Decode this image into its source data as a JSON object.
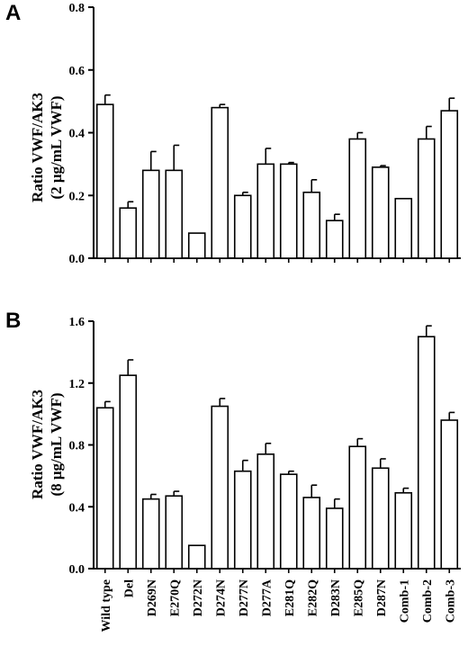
{
  "chart_data": [
    {
      "type": "bar",
      "panel_label": "A",
      "ylabel_line1": "Ratio VWF/AK3",
      "ylabel_line2": "(2 μg/mL VWF)",
      "ylim": [
        0,
        0.8
      ],
      "yticks": [
        "0.0",
        "0.2",
        "0.4",
        "0.6",
        "0.8"
      ],
      "categories": [
        "Wild type",
        "Del",
        "D269N",
        "E270Q",
        "D272N",
        "D274N",
        "D277N",
        "D277A",
        "E281Q",
        "E282Q",
        "D283N",
        "E285Q",
        "D287N",
        "Comb-1",
        "Comb-2",
        "Comb-3"
      ],
      "values": [
        0.49,
        0.16,
        0.28,
        0.28,
        0.08,
        0.48,
        0.2,
        0.3,
        0.3,
        0.21,
        0.12,
        0.38,
        0.29,
        0.19,
        0.38,
        0.47
      ],
      "errors": [
        0.03,
        0.02,
        0.06,
        0.08,
        0.0,
        0.01,
        0.01,
        0.05,
        0.005,
        0.04,
        0.02,
        0.02,
        0.005,
        0.0,
        0.04,
        0.04
      ]
    },
    {
      "type": "bar",
      "panel_label": "B",
      "ylabel_line1": "Ratio VWF/AK3",
      "ylabel_line2": "(8 μg/mL VWF)",
      "ylim": [
        0,
        1.6
      ],
      "yticks": [
        "0.0",
        "0.4",
        "0.8",
        "1.2",
        "1.6"
      ],
      "categories": [
        "Wild type",
        "Del",
        "D269N",
        "E270Q",
        "D272N",
        "D274N",
        "D277N",
        "D277A",
        "E281Q",
        "E282Q",
        "D283N",
        "E285Q",
        "D287N",
        "Comb-1",
        "Comb-2",
        "Comb-3"
      ],
      "values": [
        1.04,
        1.25,
        0.45,
        0.47,
        0.15,
        1.05,
        0.63,
        0.74,
        0.61,
        0.46,
        0.39,
        0.79,
        0.65,
        0.49,
        1.5,
        0.96
      ],
      "errors": [
        0.04,
        0.1,
        0.03,
        0.03,
        0.0,
        0.05,
        0.07,
        0.07,
        0.02,
        0.08,
        0.06,
        0.05,
        0.06,
        0.03,
        0.07,
        0.05
      ]
    }
  ]
}
